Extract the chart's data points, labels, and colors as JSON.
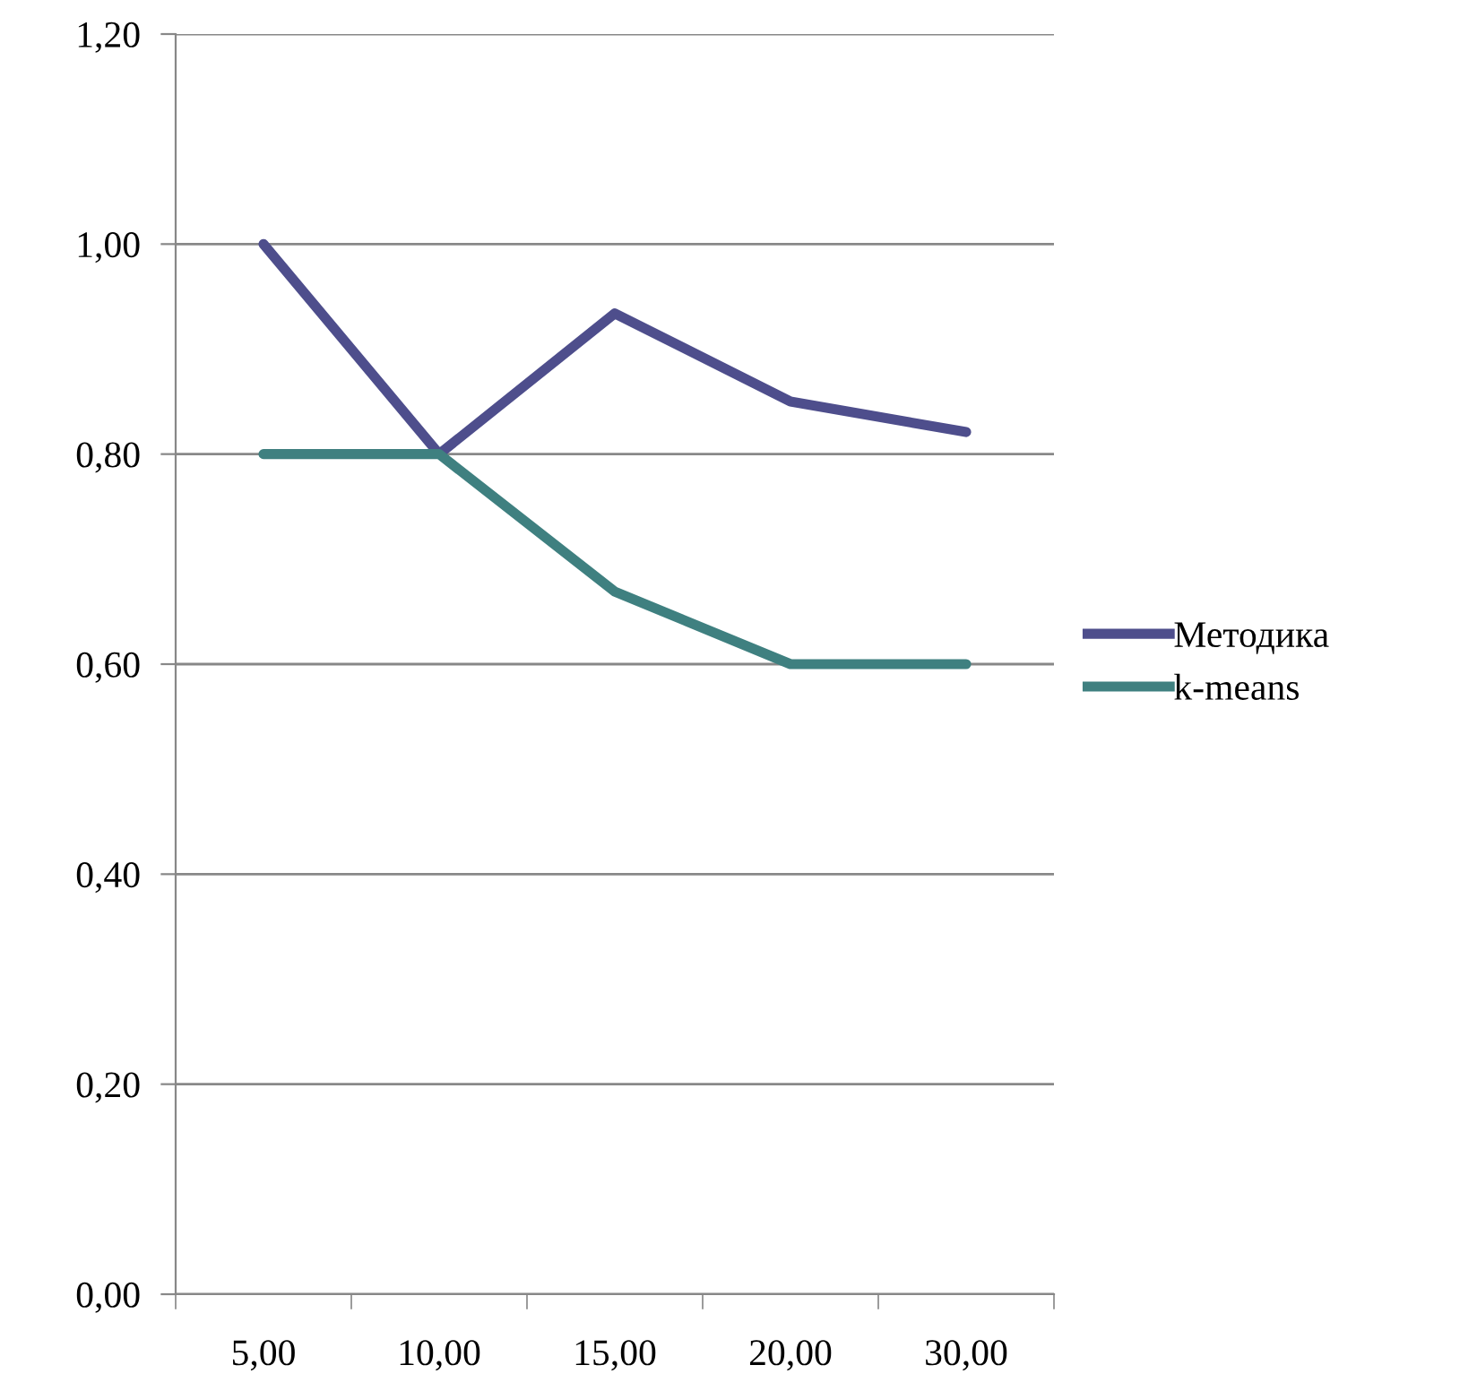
{
  "chart_data": {
    "type": "line",
    "categories": [
      "5,00",
      "10,00",
      "15,00",
      "20,00",
      "30,00"
    ],
    "series": [
      {
        "name": "Методика",
        "color": "#4e4e8c",
        "values": [
          1.0,
          0.8,
          0.934,
          0.85,
          0.821
        ]
      },
      {
        "name": "k-means",
        "color": "#3f8080",
        "values": [
          0.8,
          0.8,
          0.669,
          0.6,
          0.6
        ]
      }
    ],
    "ylim": [
      0,
      1.2
    ],
    "yticks": [
      {
        "value": 0,
        "label": "0,00"
      },
      {
        "value": 0.2,
        "label": "0,20"
      },
      {
        "value": 0.4,
        "label": "0,40"
      },
      {
        "value": 0.6,
        "label": "0,60"
      },
      {
        "value": 0.8,
        "label": "0,80"
      },
      {
        "value": 1.0,
        "label": "1,00"
      },
      {
        "value": 1.2,
        "label": "1,20"
      }
    ],
    "grid": "y",
    "legend": "right",
    "marker": "none",
    "line_style": "solid"
  }
}
